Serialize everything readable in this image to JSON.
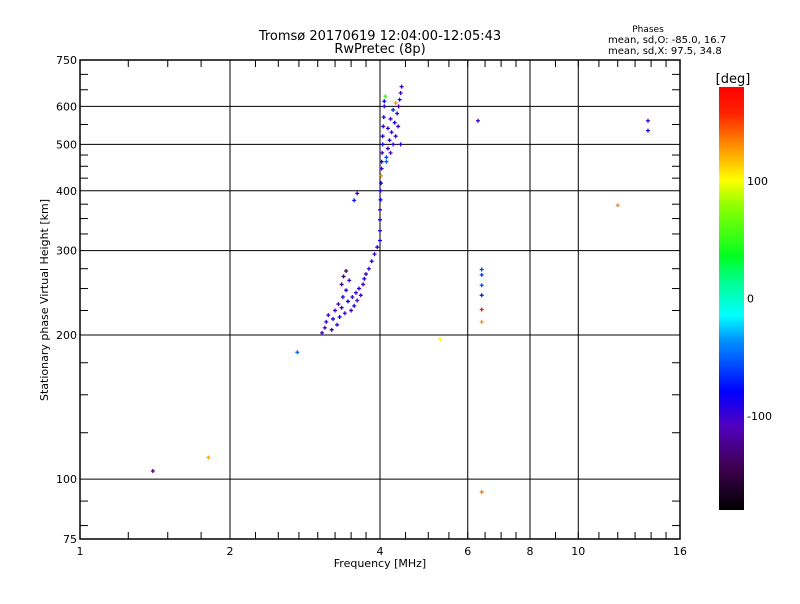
{
  "chart_data": {
    "type": "scatter",
    "title": "Tromsø 20170619 12:04:00-12:05:43",
    "subtitle": "RwPretec (8p)",
    "info": {
      "heading": "Phases",
      "line_o": "mean, sd,O: -85.0, 16.7",
      "line_x": "mean, sd,X:  97.5, 34.8"
    },
    "xlabel": "Frequency [MHz]",
    "ylabel": "Stationary phase Virtual Height [km]",
    "xscale": "log",
    "yscale": "log",
    "xlim": [
      1,
      16
    ],
    "ylim": [
      75,
      750
    ],
    "x_ticks": [
      {
        "v": 1,
        "label": "1"
      },
      {
        "v": 2,
        "label": "2"
      },
      {
        "v": 4,
        "label": "4"
      },
      {
        "v": 6,
        "label": "6"
      },
      {
        "v": 8,
        "label": "8"
      },
      {
        "v": 10,
        "label": "10"
      },
      {
        "v": 16,
        "label": "16"
      }
    ],
    "y_ticks": [
      {
        "v": 75,
        "label": "75"
      },
      {
        "v": 100,
        "label": "100"
      },
      {
        "v": 200,
        "label": "200"
      },
      {
        "v": 300,
        "label": "300"
      },
      {
        "v": 400,
        "label": "400"
      },
      {
        "v": 500,
        "label": "500"
      },
      {
        "v": 600,
        "label": "600"
      },
      {
        "v": 750,
        "label": "750"
      }
    ],
    "grid": true,
    "colorbar": {
      "label": "[deg]",
      "range": [
        -180,
        180
      ],
      "ticks": [
        {
          "v": 100,
          "label": "100"
        },
        {
          "v": 0,
          "label": "0"
        },
        {
          "v": -100,
          "label": "-100"
        }
      ]
    },
    "point_fields": [
      "frequency_mhz",
      "height_km",
      "phase_deg"
    ],
    "points": [
      [
        1.4,
        104,
        -130
      ],
      [
        1.81,
        111,
        125
      ],
      [
        2.73,
        184,
        -45
      ],
      [
        5.28,
        196,
        100
      ],
      [
        6.29,
        560,
        -100
      ],
      [
        6.4,
        274,
        -60
      ],
      [
        6.4,
        267,
        -60
      ],
      [
        6.4,
        254,
        -55
      ],
      [
        6.4,
        242,
        -70
      ],
      [
        6.4,
        226,
        165
      ],
      [
        6.4,
        213,
        130
      ],
      [
        6.4,
        94,
        135
      ],
      [
        12.0,
        373,
        130
      ],
      [
        13.8,
        560,
        -100
      ],
      [
        13.8,
        534,
        -95
      ],
      [
        3.06,
        202,
        -100
      ],
      [
        3.1,
        207,
        -110
      ],
      [
        3.12,
        213,
        -95
      ],
      [
        3.15,
        220,
        -100
      ],
      [
        3.2,
        205,
        -120
      ],
      [
        3.22,
        216,
        -90
      ],
      [
        3.25,
        225,
        -105
      ],
      [
        3.28,
        210,
        -100
      ],
      [
        3.3,
        232,
        -110
      ],
      [
        3.32,
        218,
        -85
      ],
      [
        3.35,
        228,
        -100
      ],
      [
        3.37,
        240,
        -90
      ],
      [
        3.4,
        222,
        -105
      ],
      [
        3.42,
        248,
        -95
      ],
      [
        3.45,
        235,
        -80
      ],
      [
        3.47,
        260,
        -100
      ],
      [
        3.5,
        225,
        -110
      ],
      [
        3.52,
        240,
        -100
      ],
      [
        3.55,
        230,
        -90
      ],
      [
        3.58,
        245,
        -100
      ],
      [
        3.6,
        236,
        -100
      ],
      [
        3.63,
        250,
        -90
      ],
      [
        3.66,
        242,
        -110
      ],
      [
        3.7,
        255,
        -100
      ],
      [
        3.72,
        262,
        -90
      ],
      [
        3.75,
        268,
        -100
      ],
      [
        3.8,
        275,
        -95
      ],
      [
        3.85,
        285,
        -90
      ],
      [
        3.9,
        295,
        -100
      ],
      [
        3.95,
        305,
        -95
      ],
      [
        3.38,
        265,
        -130
      ],
      [
        3.42,
        272,
        -140
      ],
      [
        3.35,
        255,
        -120
      ],
      [
        3.55,
        382,
        -70
      ],
      [
        3.6,
        395,
        -100
      ],
      [
        4.0,
        315,
        -90
      ],
      [
        4.0,
        330,
        -95
      ],
      [
        4.0,
        348,
        -80
      ],
      [
        4.0,
        365,
        -100
      ],
      [
        4.01,
        383,
        -85
      ],
      [
        4.01,
        400,
        -95
      ],
      [
        4.02,
        415,
        -90
      ],
      [
        4.02,
        430,
        130
      ],
      [
        4.03,
        445,
        -100
      ],
      [
        4.03,
        460,
        -90
      ],
      [
        4.04,
        480,
        -100
      ],
      [
        4.05,
        500,
        -85
      ],
      [
        4.05,
        520,
        -95
      ],
      [
        4.06,
        545,
        -100
      ],
      [
        4.07,
        570,
        -90
      ],
      [
        4.08,
        600,
        -95
      ],
      [
        4.1,
        630,
        50
      ],
      [
        4.08,
        615,
        -80
      ],
      [
        4.12,
        470,
        -60
      ],
      [
        4.15,
        490,
        -100
      ],
      [
        4.18,
        510,
        -90
      ],
      [
        4.2,
        480,
        -110
      ],
      [
        4.22,
        530,
        -95
      ],
      [
        4.25,
        500,
        -100
      ],
      [
        4.28,
        555,
        -80
      ],
      [
        4.3,
        520,
        -100
      ],
      [
        4.33,
        580,
        -90
      ],
      [
        4.35,
        545,
        -100
      ],
      [
        4.38,
        620,
        -95
      ],
      [
        4.4,
        640,
        -100
      ],
      [
        4.36,
        600,
        -110
      ],
      [
        4.3,
        610,
        130
      ],
      [
        4.25,
        590,
        -70
      ],
      [
        4.2,
        565,
        -100
      ],
      [
        4.15,
        540,
        -95
      ],
      [
        4.12,
        460,
        -50
      ],
      [
        4.4,
        500,
        -90
      ],
      [
        4.42,
        660,
        -100
      ]
    ]
  }
}
